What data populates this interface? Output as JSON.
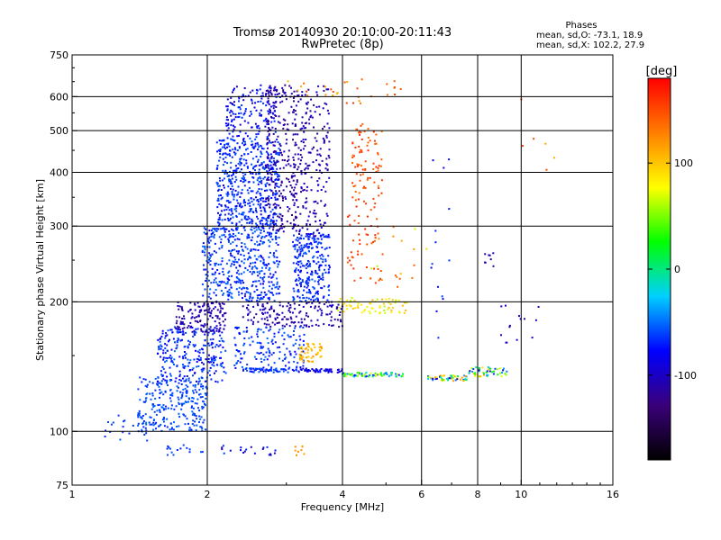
{
  "chart_data": {
    "type": "scatter",
    "title": "Tromsø 20140930 20:10:00-20:11:43",
    "subtitle": "RwPretec (8p)",
    "stats": {
      "heading": "Phases",
      "line_o": "mean, sd,O: -73.1, 18.9",
      "line_x": "mean, sd,X: 102.2, 27.9"
    },
    "xlabel": "Frequency [MHz]",
    "ylabel": "Stationary phase Virtual Height [km]",
    "x_scale": "log",
    "y_scale": "log",
    "xlim": [
      1,
      16
    ],
    "ylim": [
      75,
      750
    ],
    "x_ticks": [
      {
        "value": 1,
        "label": "1"
      },
      {
        "value": 2,
        "label": "2"
      },
      {
        "value": 4,
        "label": "4"
      },
      {
        "value": 6,
        "label": "6"
      },
      {
        "value": 8,
        "label": "8"
      },
      {
        "value": 10,
        "label": "10"
      },
      {
        "value": 16,
        "label": "16"
      }
    ],
    "x_grid": [
      2,
      4,
      6,
      8,
      10
    ],
    "y_ticks": [
      {
        "value": 75,
        "label": "75"
      },
      {
        "value": 100,
        "label": "100"
      },
      {
        "value": 200,
        "label": "200"
      },
      {
        "value": 300,
        "label": "300"
      },
      {
        "value": 400,
        "label": "400"
      },
      {
        "value": 500,
        "label": "500"
      },
      {
        "value": 600,
        "label": "600"
      },
      {
        "value": 750,
        "label": "750"
      }
    ],
    "y_grid": [
      100,
      200,
      300,
      400,
      500,
      600
    ],
    "grid": true,
    "colorbar": {
      "label": "[deg]",
      "range": [
        -180,
        180
      ],
      "ticks": [
        {
          "value": 100,
          "label": "100"
        },
        {
          "value": 0,
          "label": "0"
        },
        {
          "value": -100,
          "label": "-100"
        }
      ],
      "colors": [
        "#000000",
        "#3a007a",
        "#0000ff",
        "#00d0ff",
        "#00ff00",
        "#ffff00",
        "#ff7f00",
        "#ff0000"
      ]
    },
    "clusters": [
      {
        "f": [
          1.4,
          2.0
        ],
        "h": [
          100,
          135
        ],
        "n": 260,
        "phase": [
          -70,
          -50
        ]
      },
      {
        "f": [
          1.55,
          2.2
        ],
        "h": [
          130,
          175
        ],
        "n": 260,
        "phase": [
          -90,
          -50
        ]
      },
      {
        "f": [
          1.7,
          2.2
        ],
        "h": [
          170,
          200
        ],
        "n": 140,
        "phase": [
          -120,
          -95
        ]
      },
      {
        "f": [
          1.95,
          2.9
        ],
        "h": [
          200,
          300
        ],
        "n": 460,
        "phase": [
          -80,
          -50
        ]
      },
      {
        "f": [
          2.1,
          2.9
        ],
        "h": [
          300,
          480
        ],
        "n": 520,
        "phase": [
          -80,
          -55
        ]
      },
      {
        "f": [
          2.2,
          2.85
        ],
        "h": [
          480,
          640
        ],
        "n": 150,
        "phase": [
          -100,
          -60
        ]
      },
      {
        "f": [
          2.7,
          3.15
        ],
        "h": [
          290,
          640
        ],
        "n": 240,
        "phase": [
          -125,
          -100
        ]
      },
      {
        "f": [
          3.1,
          3.75
        ],
        "h": [
          280,
          640
        ],
        "n": 220,
        "phase": [
          -120,
          -95
        ]
      },
      {
        "f": [
          3.1,
          3.75
        ],
        "h": [
          200,
          290
        ],
        "n": 260,
        "phase": [
          -80,
          -55
        ]
      },
      {
        "f": [
          2.4,
          4.0
        ],
        "h": [
          175,
          200
        ],
        "n": 160,
        "phase": [
          -120,
          -95
        ]
      },
      {
        "f": [
          2.3,
          3.3
        ],
        "h": [
          140,
          175
        ],
        "n": 150,
        "phase": [
          -80,
          -50
        ]
      },
      {
        "f": [
          3.2,
          3.6
        ],
        "h": [
          145,
          160
        ],
        "n": 50,
        "phase": [
          95,
          120
        ]
      },
      {
        "f": [
          4.2,
          4.9
        ],
        "h": [
          340,
          520
        ],
        "n": 80,
        "phase": [
          130,
          165
        ]
      },
      {
        "f": [
          4.1,
          4.9
        ],
        "h": [
          220,
          340
        ],
        "n": 50,
        "phase": [
          140,
          165
        ]
      },
      {
        "f": [
          3.9,
          5.6
        ],
        "h": [
          188,
          205
        ],
        "n": 70,
        "phase": [
          60,
          110
        ]
      },
      {
        "f": [
          4.5,
          6.2
        ],
        "h": [
          215,
          300
        ],
        "n": 20,
        "phase": [
          60,
          150
        ]
      },
      {
        "f": [
          3.0,
          5.5
        ],
        "h": [
          575,
          660
        ],
        "n": 30,
        "phase": [
          100,
          160
        ]
      },
      {
        "f": [
          6.3,
          7.0
        ],
        "h": [
          150,
          500
        ],
        "n": 14,
        "phase": [
          -90,
          -60
        ]
      },
      {
        "f": [
          8.3,
          8.7
        ],
        "h": [
          240,
          260
        ],
        "n": 8,
        "phase": [
          -110,
          -100
        ]
      },
      {
        "f": [
          9.0,
          11.0
        ],
        "h": [
          160,
          200
        ],
        "n": 14,
        "phase": [
          -110,
          -90
        ]
      },
      {
        "f": [
          10.0,
          12.5
        ],
        "h": [
          400,
          600
        ],
        "n": 6,
        "phase": [
          90,
          160
        ]
      },
      {
        "f": [
          1.15,
          1.5
        ],
        "h": [
          95,
          110
        ],
        "n": 25,
        "phase": [
          -70,
          -55
        ]
      },
      {
        "f": [
          1.6,
          2.0
        ],
        "h": [
          88,
          93
        ],
        "n": 15,
        "phase": [
          -70,
          -55
        ]
      },
      {
        "f": [
          2.1,
          2.9
        ],
        "h": [
          88,
          93
        ],
        "n": 20,
        "phase": [
          -110,
          -60
        ]
      },
      {
        "f": [
          3.1,
          3.3
        ],
        "h": [
          88,
          93
        ],
        "n": 8,
        "phase": [
          110,
          130
        ]
      }
    ],
    "traces": [
      {
        "f": [
          2.4,
          3.2
        ],
        "h": [
          137,
          140
        ],
        "n": 60,
        "phase": [
          -80,
          -55
        ]
      },
      {
        "f": [
          3.2,
          4.0
        ],
        "h": [
          137,
          140
        ],
        "n": 50,
        "phase": [
          -100,
          -70
        ]
      },
      {
        "f": [
          4.0,
          5.6
        ],
        "h": [
          134,
          137
        ],
        "n": 70,
        "phase": [
          -80,
          80
        ]
      },
      {
        "f": [
          6.2,
          7.6
        ],
        "h": [
          131,
          135
        ],
        "n": 50,
        "phase": [
          -120,
          120
        ]
      },
      {
        "f": [
          7.6,
          9.3
        ],
        "h": [
          134,
          141
        ],
        "n": 50,
        "phase": [
          -120,
          120
        ]
      }
    ]
  }
}
